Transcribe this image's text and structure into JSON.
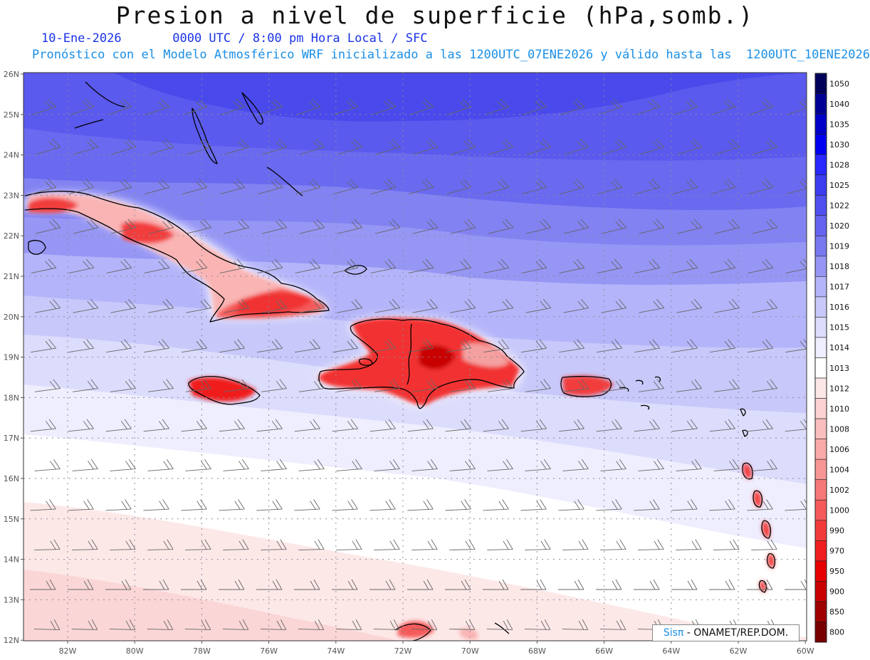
{
  "header": {
    "title": "Presion a nivel de superficie (hPa,somb.)",
    "date": "10-Ene-2026",
    "time_info": "0000 UTC / 8:00 pm Hora Local / SFC",
    "model_info": "Pronóstico con el Modelo Atmosférico WRF inicializado a las 1200UTC_07ENE2026 y válido hasta las  1200UTC_10ENE2026"
  },
  "axes": {
    "lat_labels": [
      "26N",
      "25N",
      "24N",
      "23N",
      "22N",
      "21N",
      "20N",
      "19N",
      "18N",
      "17N",
      "16N",
      "15N",
      "14N",
      "13N",
      "12N"
    ],
    "lon_labels": [
      "82W",
      "80W",
      "78W",
      "76W",
      "74W",
      "72W",
      "70W",
      "68W",
      "66W",
      "64W",
      "62W",
      "60W"
    ]
  },
  "colorbar": {
    "levels": [
      "1050",
      "1040",
      "1035",
      "1030",
      "1028",
      "1025",
      "1022",
      "1020",
      "1019",
      "1018",
      "1017",
      "1016",
      "1015",
      "1014",
      "1013",
      "1012",
      "1010",
      "1008",
      "1006",
      "1004",
      "1002",
      "1000",
      "990",
      "970",
      "950",
      "900",
      "850",
      "800"
    ],
    "colors": [
      "#00005a",
      "#000094",
      "#0000c8",
      "#0000f0",
      "#2828ff",
      "#3c3cf0",
      "#5050f0",
      "#6464f0",
      "#7878f0",
      "#9696f5",
      "#b4b4fa",
      "#c8c8fa",
      "#dcdcfc",
      "#eeeefe",
      "#ffffff",
      "#fde6e6",
      "#fcd2d2",
      "#fbbebe",
      "#faaaaa",
      "#f89696",
      "#f67878",
      "#f45a5a",
      "#f23c3c",
      "#f01e1e",
      "#e60000",
      "#c80000",
      "#a00000",
      "#780000"
    ]
  },
  "credit": {
    "brand": "Sisπ",
    "text": " - ONAMET/REP.DOM."
  }
}
